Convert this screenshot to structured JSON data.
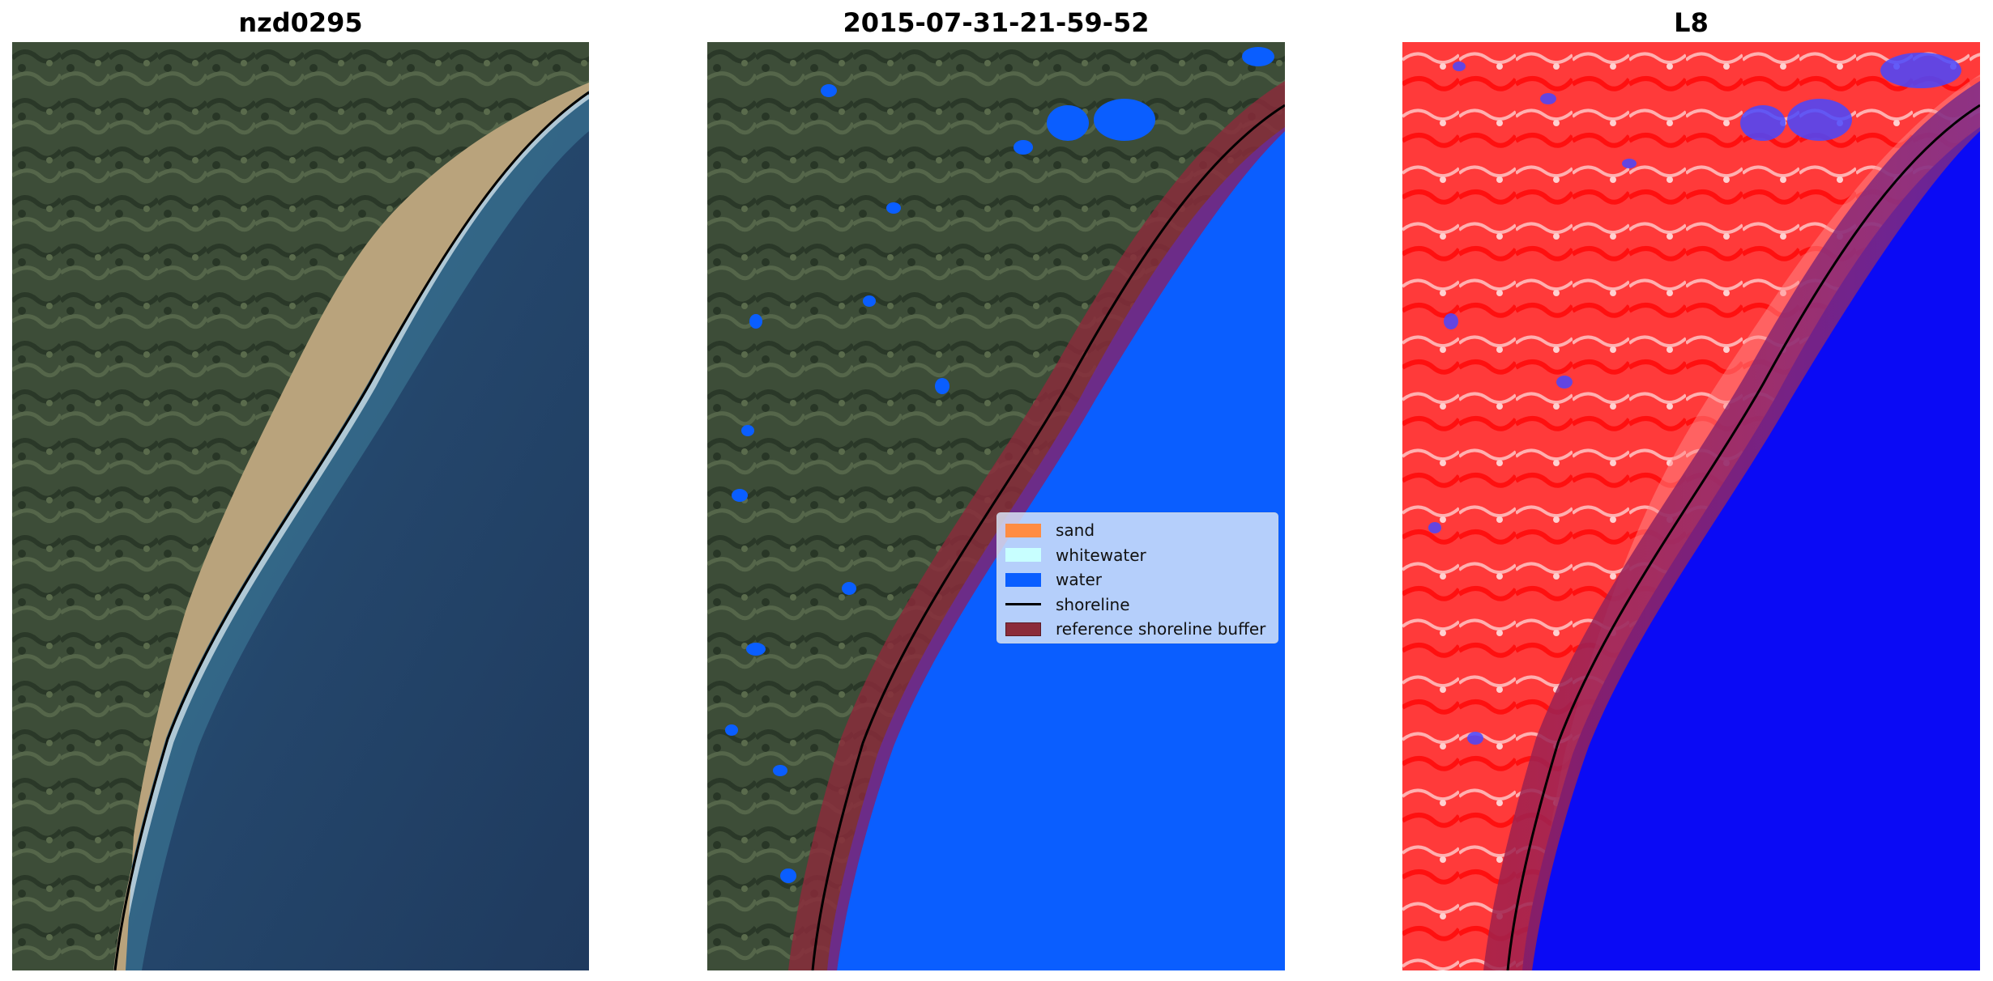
{
  "panels": [
    {
      "title": "nzd0295",
      "kind": "rgb"
    },
    {
      "title": "2015-07-31-21-59-52",
      "kind": "classified"
    },
    {
      "title": "L8",
      "kind": "index"
    }
  ],
  "legend": {
    "items": [
      {
        "label": "sand",
        "color": "#ff8c42",
        "type": "patch"
      },
      {
        "label": "whitewater",
        "color": "#c8ffff",
        "type": "patch"
      },
      {
        "label": "water",
        "color": "#0a5eff",
        "type": "patch"
      },
      {
        "label": "shoreline",
        "color": "#000000",
        "type": "line"
      },
      {
        "label": "reference shoreline buffer",
        "color": "#8b2b3a",
        "type": "patch"
      }
    ]
  },
  "colors": {
    "land": "#3e4d38",
    "land_dark": "#2b3a2c",
    "sand": "#b8a27c",
    "sea_rgb": "#24456b",
    "sea_shallow": "#3c7a98",
    "water_class": "#0a5eff",
    "buffer": "#8b2b3a",
    "index_land": "#ff3030",
    "index_water": "#0000ff"
  }
}
